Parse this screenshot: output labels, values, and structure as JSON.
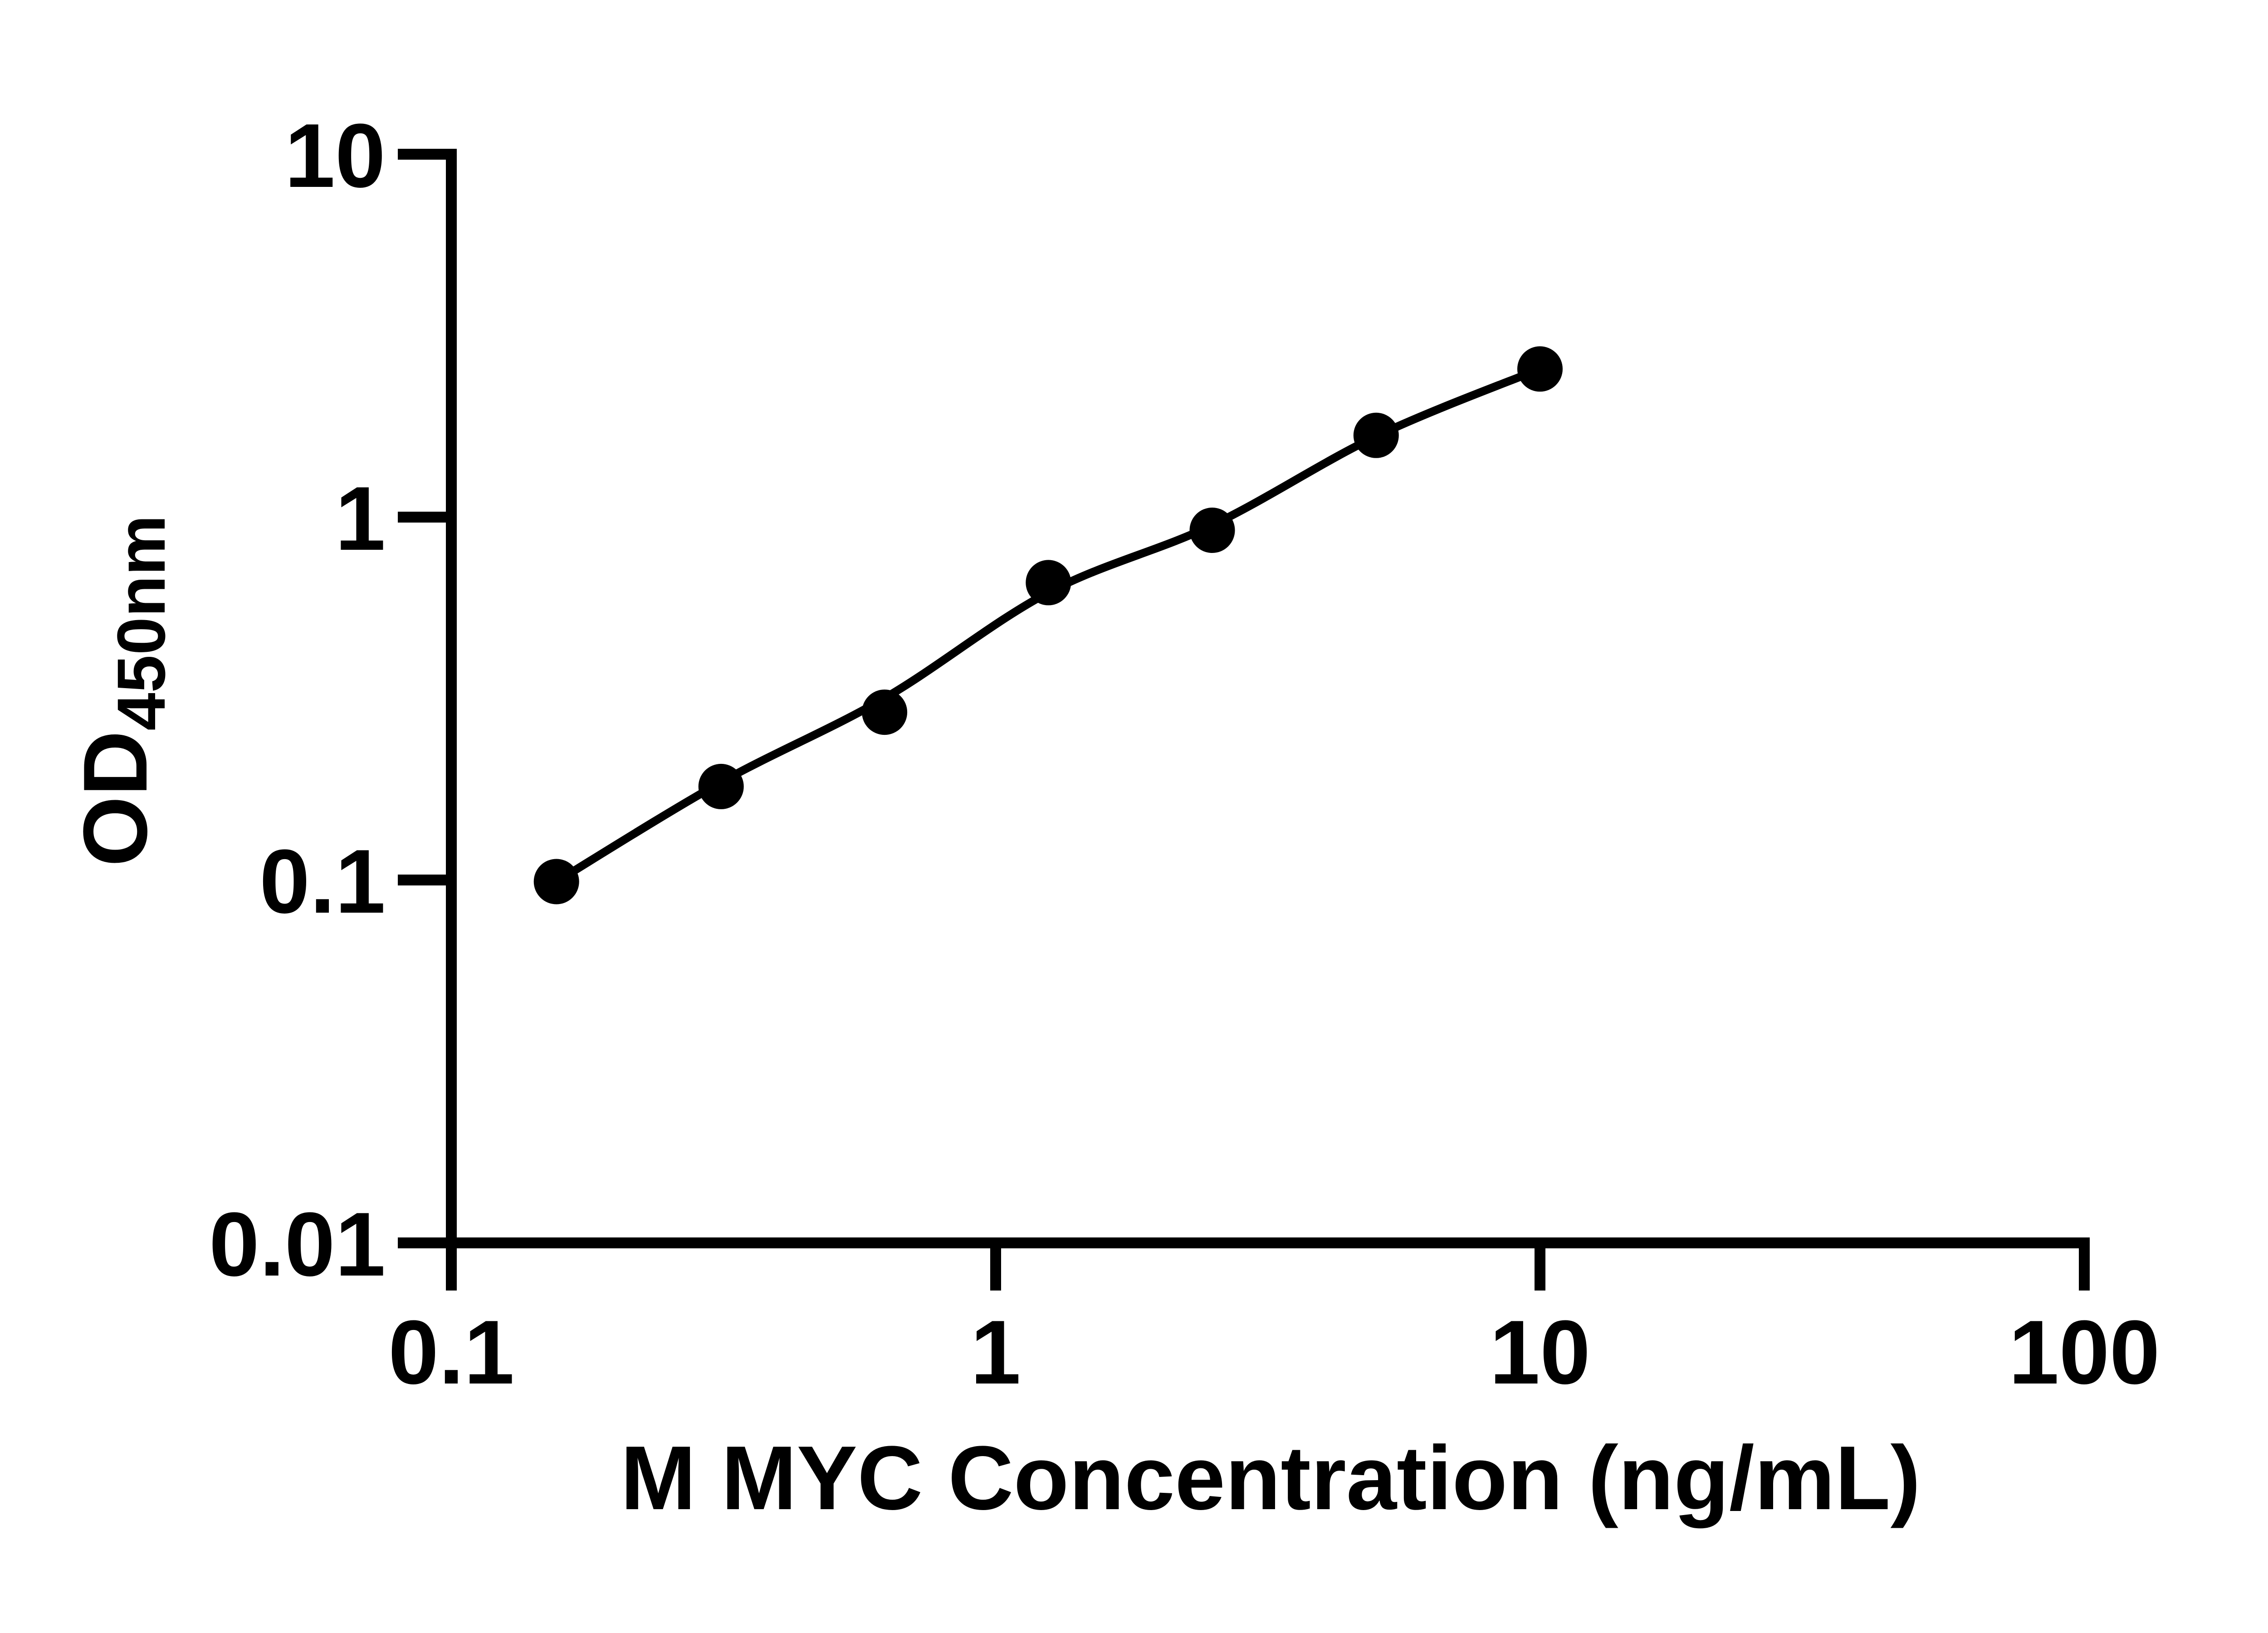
{
  "figure": {
    "background_color": "#ffffff",
    "ink_color": "#000000"
  },
  "axes": {
    "x": {
      "title": "M MYC Concentration (ng/mL)",
      "scale": "log10",
      "min": 0.1,
      "max": 100,
      "ticks": [
        0.1,
        1,
        10,
        100
      ],
      "tick_labels": [
        "0.1",
        "1",
        "10",
        "100"
      ]
    },
    "y": {
      "title_main": "OD",
      "title_sub": "450nm",
      "scale": "log10",
      "min": 0.01,
      "max": 10,
      "ticks": [
        10,
        1,
        0.1,
        0.01
      ],
      "tick_labels": [
        "10",
        "1",
        "0.1",
        "0.01"
      ]
    }
  },
  "chart_data": {
    "type": "scatter",
    "title": "",
    "xlabel": "M MYC Concentration (ng/mL)",
    "ylabel": "OD450nm",
    "x_scale": "log10",
    "y_scale": "log10",
    "xlim": [
      0.1,
      100
    ],
    "ylim": [
      0.01,
      10
    ],
    "grid": false,
    "legend": false,
    "marker_color": "#000000",
    "line_color": "#000000",
    "series": [
      {
        "name": "standard-points",
        "type": "scatter",
        "marker": "filled-circle",
        "x": [
          0.156,
          0.313,
          0.625,
          1.25,
          2.5,
          5,
          10
        ],
        "y": [
          0.099,
          0.181,
          0.29,
          0.66,
          0.92,
          1.68,
          2.56
        ]
      },
      {
        "name": "fit-curve",
        "type": "line",
        "x": [
          0.156,
          0.313,
          0.625,
          1.25,
          2.5,
          5,
          10
        ],
        "y": [
          0.099,
          0.186,
          0.317,
          0.62,
          0.95,
          1.67,
          2.56
        ]
      }
    ]
  }
}
